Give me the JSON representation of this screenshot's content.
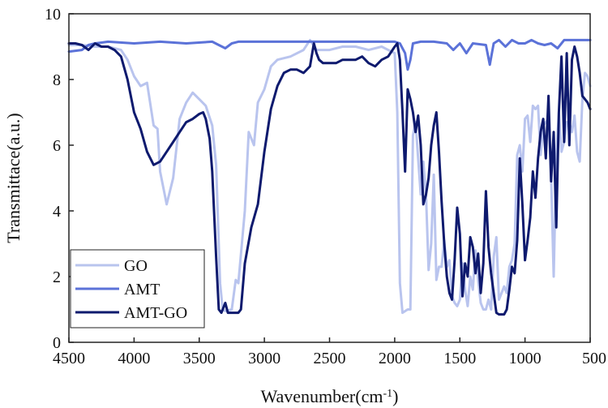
{
  "chart_data": {
    "type": "line",
    "xlabel": "Wavenumber(cm",
    "xlabel_sup": "-1",
    "xlabel_end": ")",
    "ylabel": "Transmittace(a.u.)",
    "xlim": [
      4500,
      500
    ],
    "ylim": [
      0,
      10
    ],
    "x_ticks": [
      4500,
      4000,
      3500,
      3000,
      2500,
      2000,
      1500,
      1000,
      500
    ],
    "y_ticks": [
      0,
      2,
      4,
      6,
      8,
      10
    ],
    "legend_position": "bottom-left",
    "grid": false,
    "series": [
      {
        "name": "GO",
        "color": "#b9c4ee",
        "points": [
          [
            4500,
            9.05
          ],
          [
            4400,
            9.05
          ],
          [
            4300,
            9.0
          ],
          [
            4200,
            9.0
          ],
          [
            4100,
            8.9
          ],
          [
            4050,
            8.6
          ],
          [
            4000,
            8.1
          ],
          [
            3950,
            7.8
          ],
          [
            3900,
            7.9
          ],
          [
            3850,
            6.6
          ],
          [
            3820,
            6.5
          ],
          [
            3800,
            5.2
          ],
          [
            3750,
            4.2
          ],
          [
            3700,
            5.0
          ],
          [
            3650,
            6.8
          ],
          [
            3600,
            7.3
          ],
          [
            3550,
            7.6
          ],
          [
            3500,
            7.4
          ],
          [
            3450,
            7.2
          ],
          [
            3400,
            6.6
          ],
          [
            3370,
            5.4
          ],
          [
            3340,
            1.8
          ],
          [
            3320,
            1.0
          ],
          [
            3300,
            0.95
          ],
          [
            3250,
            1.0
          ],
          [
            3220,
            1.9
          ],
          [
            3200,
            1.8
          ],
          [
            3150,
            4.0
          ],
          [
            3120,
            6.4
          ],
          [
            3080,
            6.0
          ],
          [
            3050,
            7.3
          ],
          [
            3000,
            7.7
          ],
          [
            2950,
            8.4
          ],
          [
            2900,
            8.6
          ],
          [
            2800,
            8.7
          ],
          [
            2700,
            8.9
          ],
          [
            2650,
            9.2
          ],
          [
            2600,
            8.9
          ],
          [
            2500,
            8.9
          ],
          [
            2400,
            9.0
          ],
          [
            2300,
            9.0
          ],
          [
            2200,
            8.9
          ],
          [
            2100,
            9.0
          ],
          [
            2050,
            8.9
          ],
          [
            2000,
            8.8
          ],
          [
            1980,
            7.0
          ],
          [
            1960,
            1.8
          ],
          [
            1940,
            0.9
          ],
          [
            1900,
            1.0
          ],
          [
            1880,
            1.0
          ],
          [
            1860,
            6.3
          ],
          [
            1840,
            6.7
          ],
          [
            1800,
            4.5
          ],
          [
            1780,
            5.5
          ],
          [
            1760,
            4.5
          ],
          [
            1740,
            2.2
          ],
          [
            1720,
            3.0
          ],
          [
            1700,
            5.1
          ],
          [
            1680,
            1.9
          ],
          [
            1660,
            2.3
          ],
          [
            1640,
            2.3
          ],
          [
            1620,
            3.1
          ],
          [
            1600,
            2.3
          ],
          [
            1580,
            2.5
          ],
          [
            1560,
            1.4
          ],
          [
            1540,
            1.2
          ],
          [
            1520,
            1.1
          ],
          [
            1500,
            1.3
          ],
          [
            1480,
            2.4
          ],
          [
            1460,
            1.6
          ],
          [
            1440,
            1.1
          ],
          [
            1420,
            2.0
          ],
          [
            1400,
            1.6
          ],
          [
            1380,
            2.8
          ],
          [
            1360,
            1.9
          ],
          [
            1340,
            1.2
          ],
          [
            1320,
            1.0
          ],
          [
            1300,
            1.0
          ],
          [
            1280,
            1.3
          ],
          [
            1260,
            1.0
          ],
          [
            1240,
            2.6
          ],
          [
            1220,
            3.2
          ],
          [
            1200,
            1.3
          ],
          [
            1180,
            1.5
          ],
          [
            1160,
            1.7
          ],
          [
            1140,
            1.5
          ],
          [
            1120,
            2.3
          ],
          [
            1100,
            2.5
          ],
          [
            1080,
            3.0
          ],
          [
            1060,
            5.7
          ],
          [
            1040,
            6.0
          ],
          [
            1020,
            5.2
          ],
          [
            1000,
            6.8
          ],
          [
            980,
            6.9
          ],
          [
            960,
            6.1
          ],
          [
            940,
            7.2
          ],
          [
            920,
            7.1
          ],
          [
            900,
            7.2
          ],
          [
            880,
            5.7
          ],
          [
            860,
            6.6
          ],
          [
            840,
            6.7
          ],
          [
            820,
            6.8
          ],
          [
            800,
            5.1
          ],
          [
            780,
            2.0
          ],
          [
            760,
            5.6
          ],
          [
            740,
            7.0
          ],
          [
            720,
            5.8
          ],
          [
            700,
            6.1
          ],
          [
            680,
            6.7
          ],
          [
            660,
            6.7
          ],
          [
            640,
            6.4
          ],
          [
            620,
            6.9
          ],
          [
            600,
            5.8
          ],
          [
            580,
            5.5
          ],
          [
            560,
            7.4
          ],
          [
            540,
            8.2
          ],
          [
            520,
            8.1
          ],
          [
            500,
            7.8
          ]
        ]
      },
      {
        "name": "AMT",
        "color": "#5b72d8",
        "points": [
          [
            4500,
            8.85
          ],
          [
            4400,
            8.9
          ],
          [
            4350,
            9.05
          ],
          [
            4300,
            9.1
          ],
          [
            4200,
            9.15
          ],
          [
            4000,
            9.1
          ],
          [
            3800,
            9.15
          ],
          [
            3600,
            9.1
          ],
          [
            3400,
            9.15
          ],
          [
            3350,
            9.05
          ],
          [
            3300,
            8.95
          ],
          [
            3250,
            9.1
          ],
          [
            3200,
            9.15
          ],
          [
            3000,
            9.15
          ],
          [
            2800,
            9.15
          ],
          [
            2600,
            9.15
          ],
          [
            2400,
            9.15
          ],
          [
            2200,
            9.15
          ],
          [
            2000,
            9.15
          ],
          [
            1960,
            9.1
          ],
          [
            1920,
            8.8
          ],
          [
            1900,
            8.3
          ],
          [
            1880,
            8.6
          ],
          [
            1860,
            9.1
          ],
          [
            1800,
            9.15
          ],
          [
            1700,
            9.15
          ],
          [
            1600,
            9.1
          ],
          [
            1550,
            8.9
          ],
          [
            1500,
            9.1
          ],
          [
            1450,
            8.8
          ],
          [
            1400,
            9.1
          ],
          [
            1300,
            9.05
          ],
          [
            1270,
            8.45
          ],
          [
            1240,
            9.1
          ],
          [
            1200,
            9.2
          ],
          [
            1150,
            9.0
          ],
          [
            1100,
            9.2
          ],
          [
            1050,
            9.1
          ],
          [
            1000,
            9.1
          ],
          [
            950,
            9.2
          ],
          [
            900,
            9.1
          ],
          [
            850,
            9.05
          ],
          [
            800,
            9.1
          ],
          [
            750,
            8.95
          ],
          [
            700,
            9.2
          ],
          [
            650,
            9.2
          ],
          [
            600,
            9.2
          ],
          [
            550,
            9.2
          ],
          [
            500,
            9.2
          ]
        ]
      },
      {
        "name": "AMT-GO",
        "color": "#0e1a6e",
        "points": [
          [
            4500,
            9.1
          ],
          [
            4450,
            9.1
          ],
          [
            4400,
            9.05
          ],
          [
            4350,
            8.9
          ],
          [
            4300,
            9.1
          ],
          [
            4250,
            9.0
          ],
          [
            4200,
            9.0
          ],
          [
            4150,
            8.9
          ],
          [
            4100,
            8.7
          ],
          [
            4050,
            8.0
          ],
          [
            4000,
            7.0
          ],
          [
            3950,
            6.5
          ],
          [
            3900,
            5.8
          ],
          [
            3850,
            5.4
          ],
          [
            3800,
            5.5
          ],
          [
            3750,
            5.8
          ],
          [
            3700,
            6.1
          ],
          [
            3650,
            6.4
          ],
          [
            3600,
            6.7
          ],
          [
            3550,
            6.8
          ],
          [
            3500,
            6.95
          ],
          [
            3470,
            7.0
          ],
          [
            3450,
            6.8
          ],
          [
            3420,
            6.2
          ],
          [
            3400,
            5.2
          ],
          [
            3370,
            2.6
          ],
          [
            3350,
            1.0
          ],
          [
            3330,
            0.9
          ],
          [
            3300,
            1.2
          ],
          [
            3280,
            0.9
          ],
          [
            3250,
            0.9
          ],
          [
            3200,
            0.9
          ],
          [
            3180,
            1.0
          ],
          [
            3150,
            2.4
          ],
          [
            3100,
            3.5
          ],
          [
            3050,
            4.2
          ],
          [
            3000,
            5.8
          ],
          [
            2950,
            7.1
          ],
          [
            2900,
            7.8
          ],
          [
            2850,
            8.2
          ],
          [
            2800,
            8.3
          ],
          [
            2750,
            8.3
          ],
          [
            2700,
            8.2
          ],
          [
            2650,
            8.4
          ],
          [
            2620,
            9.1
          ],
          [
            2600,
            8.8
          ],
          [
            2580,
            8.6
          ],
          [
            2550,
            8.5
          ],
          [
            2500,
            8.5
          ],
          [
            2450,
            8.5
          ],
          [
            2400,
            8.6
          ],
          [
            2350,
            8.6
          ],
          [
            2300,
            8.6
          ],
          [
            2250,
            8.7
          ],
          [
            2200,
            8.5
          ],
          [
            2150,
            8.4
          ],
          [
            2100,
            8.6
          ],
          [
            2050,
            8.7
          ],
          [
            2000,
            9.0
          ],
          [
            1980,
            9.1
          ],
          [
            1960,
            8.6
          ],
          [
            1940,
            7.0
          ],
          [
            1920,
            5.2
          ],
          [
            1900,
            7.7
          ],
          [
            1880,
            7.4
          ],
          [
            1860,
            7.0
          ],
          [
            1840,
            6.4
          ],
          [
            1820,
            6.9
          ],
          [
            1800,
            6.0
          ],
          [
            1780,
            4.2
          ],
          [
            1760,
            4.5
          ],
          [
            1740,
            5.0
          ],
          [
            1720,
            6.0
          ],
          [
            1700,
            6.6
          ],
          [
            1680,
            7.0
          ],
          [
            1660,
            5.8
          ],
          [
            1640,
            4.3
          ],
          [
            1620,
            3.0
          ],
          [
            1600,
            2.0
          ],
          [
            1580,
            1.5
          ],
          [
            1560,
            1.3
          ],
          [
            1540,
            2.5
          ],
          [
            1520,
            4.1
          ],
          [
            1500,
            3.3
          ],
          [
            1480,
            1.4
          ],
          [
            1460,
            2.4
          ],
          [
            1440,
            2.0
          ],
          [
            1420,
            3.2
          ],
          [
            1400,
            2.9
          ],
          [
            1380,
            2.1
          ],
          [
            1360,
            2.7
          ],
          [
            1340,
            1.5
          ],
          [
            1320,
            2.4
          ],
          [
            1300,
            4.6
          ],
          [
            1280,
            2.9
          ],
          [
            1260,
            2.1
          ],
          [
            1240,
            1.5
          ],
          [
            1220,
            0.9
          ],
          [
            1200,
            0.85
          ],
          [
            1180,
            0.85
          ],
          [
            1160,
            0.85
          ],
          [
            1140,
            1.0
          ],
          [
            1120,
            1.6
          ],
          [
            1100,
            2.3
          ],
          [
            1080,
            2.1
          ],
          [
            1060,
            3.1
          ],
          [
            1040,
            5.6
          ],
          [
            1020,
            4.2
          ],
          [
            1000,
            2.5
          ],
          [
            980,
            3.1
          ],
          [
            960,
            3.8
          ],
          [
            940,
            5.2
          ],
          [
            920,
            4.4
          ],
          [
            900,
            5.6
          ],
          [
            880,
            6.4
          ],
          [
            860,
            6.8
          ],
          [
            840,
            5.6
          ],
          [
            820,
            7.5
          ],
          [
            800,
            4.9
          ],
          [
            780,
            6.4
          ],
          [
            760,
            3.5
          ],
          [
            740,
            7.0
          ],
          [
            720,
            8.7
          ],
          [
            700,
            6.1
          ],
          [
            680,
            8.8
          ],
          [
            660,
            6.0
          ],
          [
            640,
            8.6
          ],
          [
            620,
            9.0
          ],
          [
            600,
            8.7
          ],
          [
            580,
            8.2
          ],
          [
            560,
            7.5
          ],
          [
            540,
            7.4
          ],
          [
            520,
            7.3
          ],
          [
            500,
            7.1
          ]
        ]
      }
    ]
  }
}
